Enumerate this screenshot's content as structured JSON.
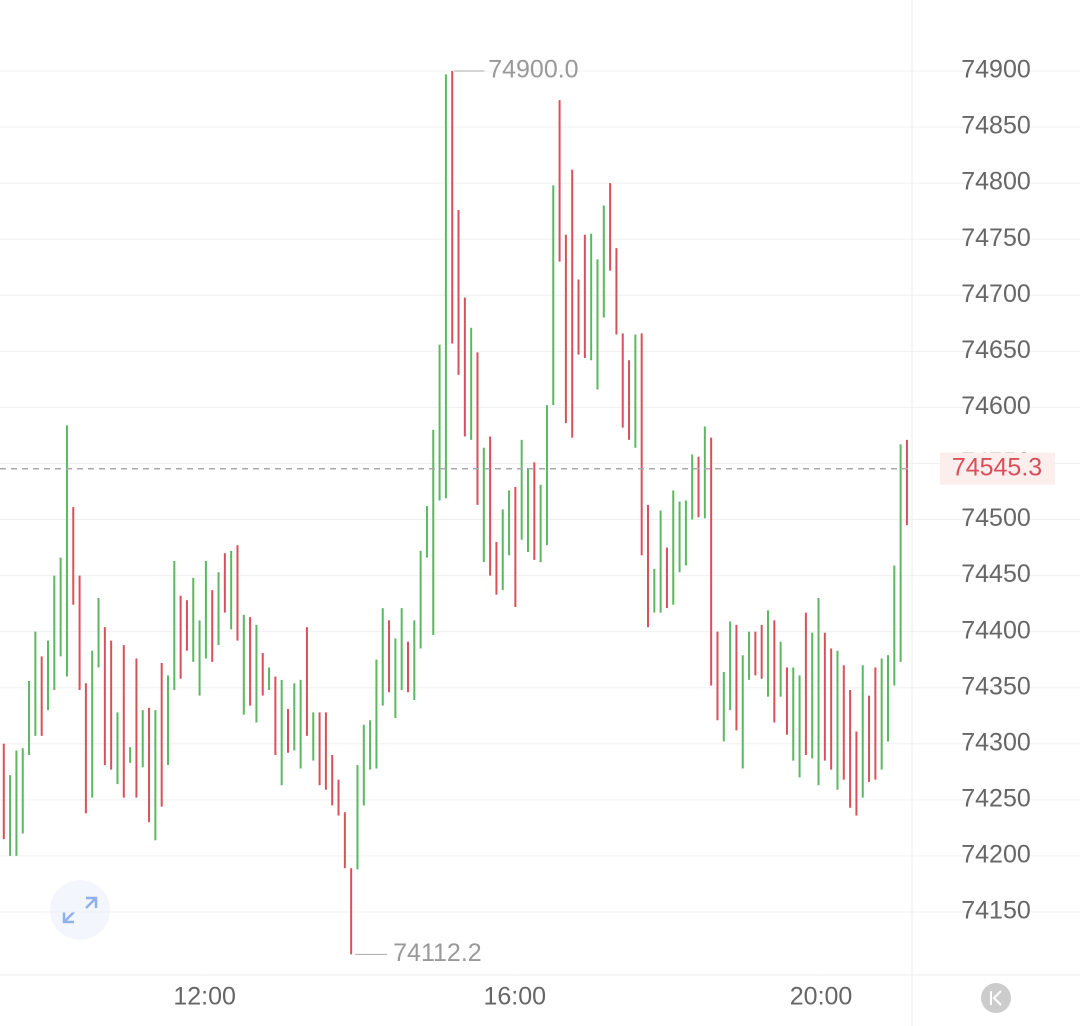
{
  "chart_data": {
    "type": "hlbar",
    "high": [
      74300,
      74272,
      74294,
      74296,
      74356,
      74400,
      74378,
      74392,
      74450,
      74466,
      74584,
      74511,
      74450,
      74354,
      74383,
      74430,
      74404,
      74392,
      74328,
      74388,
      74297,
      74376,
      74330,
      74332,
      74330,
      74372,
      74361,
      74463,
      74432,
      74428,
      74448,
      74410,
      74463,
      74437,
      74453,
      74470,
      74472,
      74477,
      74415,
      74413,
      74406,
      74381,
      74368,
      74360,
      74357,
      74331,
      74354,
      74357,
      74404,
      74328,
      74328,
      74328,
      74290,
      74268,
      74239,
      74189,
      74281,
      74317,
      74321,
      74375,
      74421,
      74410,
      74394,
      74421,
      74391,
      74410,
      74472,
      74512,
      74580,
      74656,
      74897,
      74900,
      74776,
      74698,
      74671,
      74649,
      74564,
      74574,
      74480,
      74509,
      74526,
      74529,
      74571,
      74546,
      74551,
      74531,
      74602,
      74798,
      74874,
      74754,
      74812,
      74714,
      74754,
      74755,
      74732,
      74780,
      74800,
      74742,
      74666,
      74642,
      74665,
      74666,
      74513,
      74456,
      74508,
      74475,
      74526,
      74516,
      74517,
      74558,
      74556,
      74583,
      74573,
      74400,
      74364,
      74409,
      74406,
      74379,
      74400,
      74400,
      74406,
      74419,
      74410,
      74391,
      74368,
      74368,
      74361,
      74417,
      74399,
      74430,
      74399,
      74385,
      74383,
      74370,
      74348,
      74311,
      74370,
      74343,
      74368,
      74376,
      74379,
      74459,
      74567,
      74571
    ],
    "low": [
      74215,
      74200,
      74200,
      74220,
      74290,
      74307,
      74307,
      74330,
      74348,
      74378,
      74360,
      74424,
      74348,
      74238,
      74252,
      74368,
      74281,
      74277,
      74264,
      74252,
      74283,
      74252,
      74279,
      74230,
      74214,
      74244,
      74281,
      74348,
      74358,
      74383,
      74373,
      74343,
      74376,
      74373,
      74388,
      74417,
      74402,
      74392,
      74326,
      74334,
      74319,
      74343,
      74348,
      74290,
      74263,
      74292,
      74294,
      74278,
      74307,
      74285,
      74263,
      74259,
      74245,
      74236,
      74189,
      74112.2,
      74188,
      74245,
      74277,
      74278,
      74334,
      74346,
      74323,
      74348,
      74346,
      74339,
      74385,
      74466,
      74397,
      74517,
      74519,
      74657,
      74629,
      74574,
      74571,
      74513,
      74462,
      74450,
      74433,
      74437,
      74468,
      74422,
      74482,
      74471,
      74464,
      74462,
      74477,
      74602,
      74730,
      74586,
      74573,
      74647,
      74644,
      74642,
      74616,
      74680,
      74722,
      74665,
      74582,
      74571,
      74564,
      74468,
      74404,
      74417,
      74417,
      74421,
      74424,
      74453,
      74459,
      74500,
      74502,
      74501,
      74352,
      74321,
      74302,
      74330,
      74312,
      74278,
      74357,
      74361,
      74358,
      74342,
      74319,
      74342,
      74308,
      74285,
      74270,
      74290,
      74287,
      74263,
      74285,
      74277,
      74259,
      74268,
      74243,
      74236,
      74252,
      74266,
      74268,
      74277,
      74302,
      74352,
      74373,
      74495
    ],
    "up": [
      false,
      true,
      true,
      true,
      true,
      true,
      false,
      true,
      true,
      true,
      true,
      false,
      false,
      false,
      true,
      true,
      false,
      false,
      true,
      false,
      true,
      false,
      true,
      false,
      true,
      false,
      true,
      true,
      false,
      false,
      true,
      true,
      true,
      false,
      true,
      false,
      true,
      false,
      true,
      false,
      true,
      false,
      true,
      false,
      true,
      false,
      true,
      true,
      false,
      true,
      false,
      false,
      false,
      false,
      false,
      false,
      true,
      true,
      true,
      true,
      true,
      false,
      true,
      true,
      false,
      true,
      true,
      true,
      true,
      true,
      true,
      false,
      false,
      false,
      true,
      false,
      true,
      false,
      false,
      true,
      true,
      false,
      true,
      true,
      false,
      true,
      true,
      true,
      false,
      false,
      false,
      false,
      false,
      true,
      true,
      true,
      false,
      false,
      false,
      false,
      true,
      false,
      false,
      true,
      true,
      false,
      true,
      true,
      true,
      true,
      false,
      true,
      false,
      false,
      true,
      true,
      false,
      true,
      true,
      false,
      false,
      true,
      false,
      true,
      false,
      true,
      true,
      false,
      true,
      true,
      false,
      false,
      true,
      false,
      false,
      false,
      true,
      false,
      false,
      true,
      true,
      true,
      true,
      false
    ],
    "up_color": "#5cb860",
    "down_color": "#d9505a",
    "ylim": [
      74093.8,
      74963.3
    ],
    "yticks": [
      74150,
      74200,
      74250,
      74300,
      74350,
      74400,
      74450,
      74500,
      74550,
      74600,
      74650,
      74700,
      74750,
      74800,
      74850,
      74900
    ],
    "xlim": [
      -0.6,
      143.8
    ],
    "xticks": [
      {
        "value": 31.8,
        "label": "12:00"
      },
      {
        "value": 80.9,
        "label": "16:00"
      },
      {
        "value": 129.4,
        "label": "20:00"
      }
    ],
    "max_marker": {
      "value": 74900,
      "label": "74900.0"
    },
    "min_marker": 74112.2,
    "last_price": 74545.3,
    "grid": true
  }
}
